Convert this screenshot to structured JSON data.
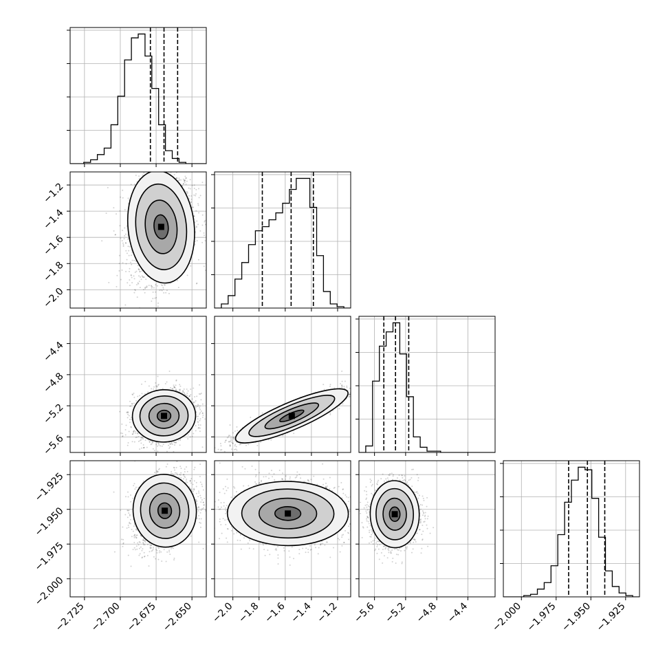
{
  "chart_data": {
    "type": "corner",
    "title": "",
    "grid": true,
    "parameters": [
      {
        "range": [
          -2.735,
          -2.64
        ],
        "ticks": [
          -2.725,
          -2.7,
          -2.675,
          -2.65
        ],
        "tick_labels": [
          "−2.725",
          "−2.700",
          "−2.675",
          "−2.650"
        ],
        "quantiles": [
          -2.679,
          -2.6695,
          -2.66
        ]
      },
      {
        "range": [
          -2.14,
          -1.1
        ],
        "ticks": [
          -2.0,
          -1.8,
          -1.6,
          -1.4,
          -1.2
        ],
        "tick_labels": [
          "−2.0",
          "−1.8",
          "−1.6",
          "−1.4",
          "−1.2"
        ],
        "quantiles": [
          -1.775,
          -1.555,
          -1.385
        ]
      },
      {
        "range": [
          -5.8,
          -4.05
        ],
        "ticks": [
          -5.6,
          -5.2,
          -4.8,
          -4.4
        ],
        "tick_labels": [
          "−5.6",
          "−5.2",
          "−4.8",
          "−4.4"
        ],
        "quantiles": [
          -5.48,
          -5.33,
          -5.16
        ]
      },
      {
        "range": [
          -2.013,
          -1.915
        ],
        "ticks": [
          -2.0,
          -1.975,
          -1.95,
          -1.925
        ],
        "tick_labels": [
          "−2.000",
          "−1.975",
          "−1.950",
          "−1.925"
        ],
        "quantiles": [
          -1.966,
          -1.9525,
          -1.94
        ]
      }
    ],
    "diagonal_histograms": [
      {
        "values": [
          0,
          0,
          1,
          3,
          7,
          12,
          30,
          52,
          80,
          97,
          100,
          83,
          58,
          30,
          10,
          4,
          1,
          0,
          0,
          0
        ]
      },
      {
        "values": [
          0,
          3,
          9,
          21,
          33,
          46,
          56,
          59,
          64,
          69,
          76,
          86,
          94,
          94,
          73,
          38,
          12,
          3,
          1,
          0
        ]
      },
      {
        "values": [
          0,
          5,
          55,
          82,
          93,
          100,
          76,
          43,
          12,
          4,
          1,
          1,
          0,
          0,
          0,
          0,
          0,
          0,
          0,
          0
        ]
      },
      {
        "values": [
          0,
          0,
          0,
          1,
          2,
          6,
          11,
          24,
          48,
          73,
          90,
          100,
          98,
          76,
          46,
          20,
          8,
          3,
          1,
          0
        ]
      }
    ],
    "pairs": [
      {
        "x": 0,
        "y": 1,
        "center": [
          -2.6715,
          -1.52
        ],
        "sd": [
          0.011,
          0.205
        ],
        "corr": 0.18
      },
      {
        "x": 0,
        "y": 2,
        "center": [
          -2.6695,
          -5.33
        ],
        "sd": [
          0.0105,
          0.16
        ],
        "corr": 0.18
      },
      {
        "x": 1,
        "y": 2,
        "center": [
          -1.55,
          -5.33
        ],
        "sd": [
          0.2,
          0.16
        ],
        "corr": 0.9
      },
      {
        "x": 0,
        "y": 3,
        "center": [
          -2.669,
          -1.951
        ],
        "sd": [
          0.0105,
          0.0125
        ],
        "corr": 0.28
      },
      {
        "x": 1,
        "y": 3,
        "center": [
          -1.58,
          -1.953
        ],
        "sd": [
          0.22,
          0.011
        ],
        "corr": -0.05
      },
      {
        "x": 2,
        "y": 3,
        "center": [
          -5.34,
          -1.9535
        ],
        "sd": [
          0.15,
          0.0115
        ],
        "corr": 0.05
      }
    ]
  }
}
